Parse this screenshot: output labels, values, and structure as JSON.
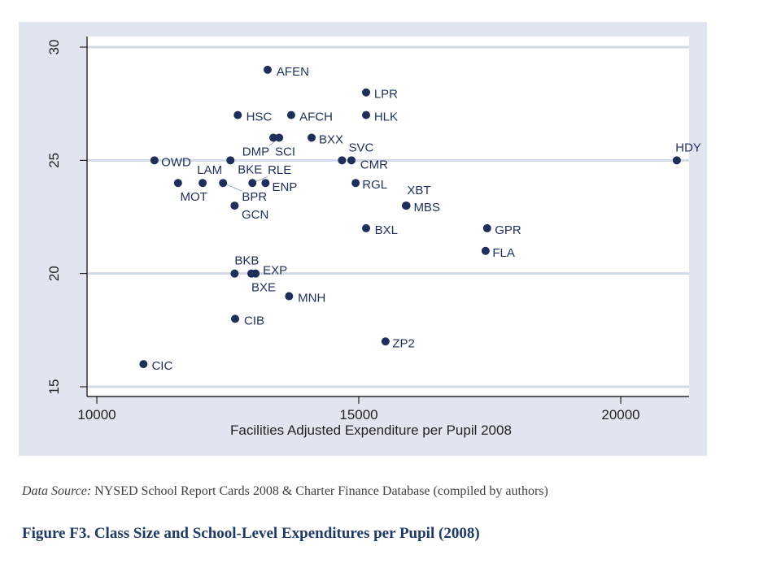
{
  "chart_data": {
    "type": "scatter",
    "title": "",
    "xlabel": "Facilities Adjusted Expenditure per Pupil 2008",
    "ylabel": "",
    "xlim": [
      9800,
      21300
    ],
    "ylim": [
      14.6,
      30.5
    ],
    "xticks": [
      10000,
      15000,
      20000
    ],
    "yticks": [
      15,
      20,
      25,
      30
    ],
    "grid": "horizontal",
    "marker_color": "#1f2f5a",
    "points": [
      {
        "label": "AFEN",
        "x": 13260,
        "y": 29
      },
      {
        "label": "LPR",
        "x": 15140,
        "y": 28
      },
      {
        "label": "HSC",
        "x": 12690,
        "y": 27
      },
      {
        "label": "AFCH",
        "x": 13710,
        "y": 27
      },
      {
        "label": "HLK",
        "x": 15140,
        "y": 27
      },
      {
        "label": "SCI",
        "x": 13370,
        "y": 26
      },
      {
        "label": "DMP",
        "x": 13480,
        "y": 26
      },
      {
        "label": "BXX",
        "x": 14100,
        "y": 26
      },
      {
        "label": "OWD",
        "x": 11100,
        "y": 25
      },
      {
        "label": "BKE",
        "x": 12550,
        "y": 25
      },
      {
        "label": "SVC",
        "x": 14680,
        "y": 25
      },
      {
        "label": "CMR",
        "x": 14860,
        "y": 25
      },
      {
        "label": "HDY",
        "x": 21070,
        "y": 25
      },
      {
        "label": "MOT",
        "x": 11550,
        "y": 24
      },
      {
        "label": "LAM",
        "x": 12020,
        "y": 24
      },
      {
        "label": "BPR",
        "x": 12410,
        "y": 24
      },
      {
        "label": "RLE",
        "x": 12970,
        "y": 24
      },
      {
        "label": "ENP",
        "x": 13220,
        "y": 24
      },
      {
        "label": "RGL",
        "x": 14940,
        "y": 24
      },
      {
        "label": "GCN",
        "x": 12630,
        "y": 23
      },
      {
        "label": "MBS",
        "x": 15900,
        "y": 23
      },
      {
        "label": "XBT",
        "x": 15910,
        "y": 23
      },
      {
        "label": "BXL",
        "x": 15140,
        "y": 22
      },
      {
        "label": "GPR",
        "x": 17450,
        "y": 22
      },
      {
        "label": "FLA",
        "x": 17420,
        "y": 21
      },
      {
        "label": "BKB",
        "x": 12630,
        "y": 20
      },
      {
        "label": "BXE",
        "x": 12950,
        "y": 20
      },
      {
        "label": "EXP",
        "x": 13030,
        "y": 20
      },
      {
        "label": "MNH",
        "x": 13670,
        "y": 19
      },
      {
        "label": "CIB",
        "x": 12640,
        "y": 18
      },
      {
        "label": "ZP2",
        "x": 15510,
        "y": 17
      },
      {
        "label": "CIC",
        "x": 10890,
        "y": 16
      }
    ]
  },
  "source": {
    "prefix": "Data Source:",
    "text": " NYSED School Report Cards 2008 & Charter Finance Database (compiled by authors)"
  },
  "caption": "Figure F3. Class Size and School-Level Expenditures per Pupil (2008)"
}
